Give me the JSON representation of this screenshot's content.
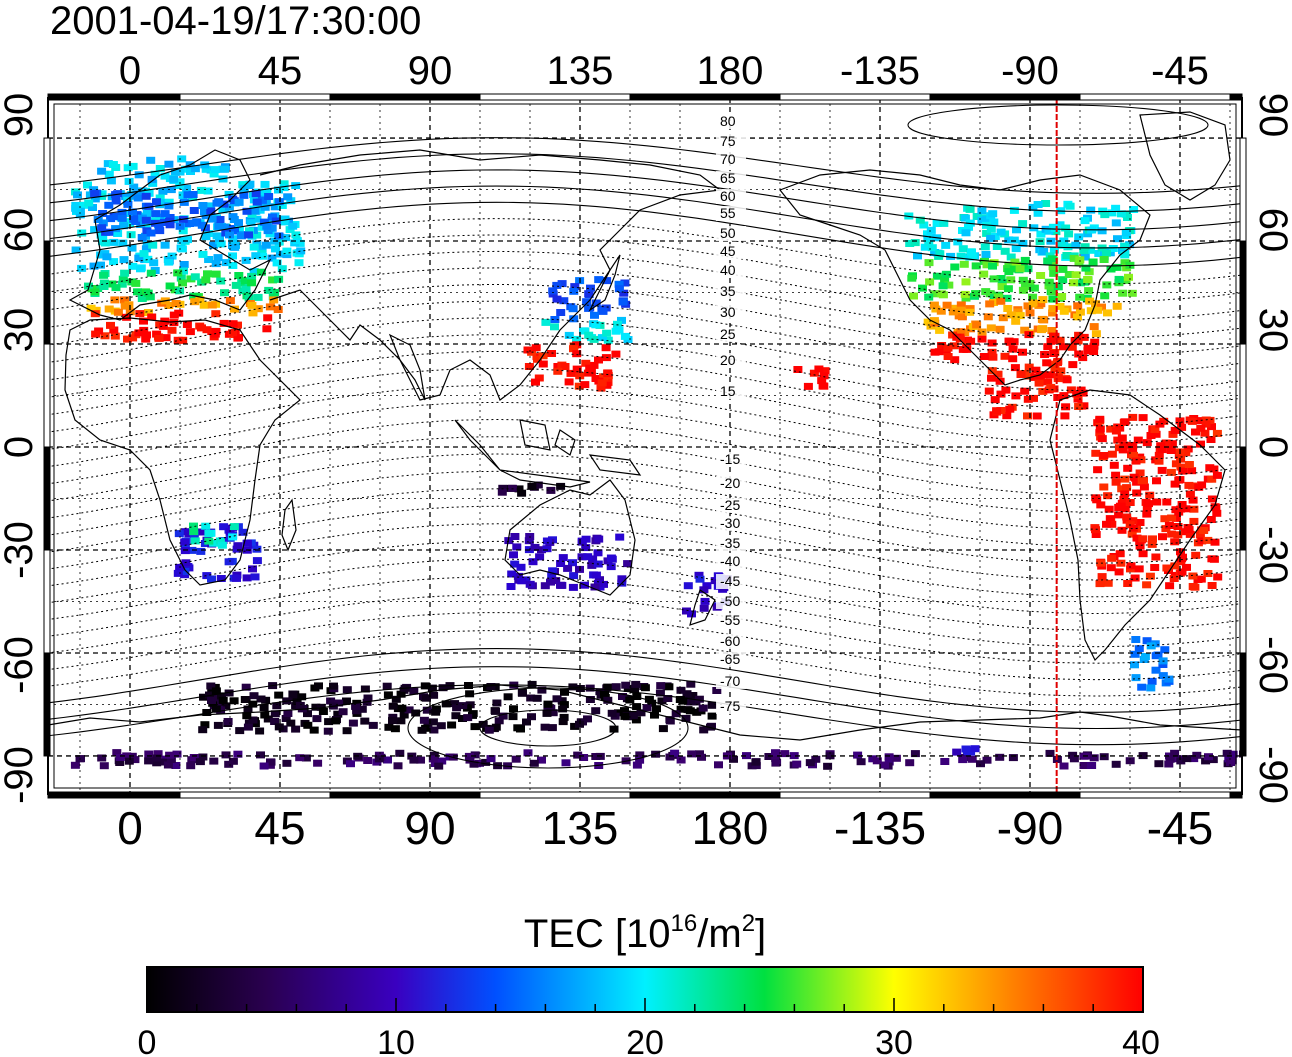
{
  "timestamp": "2001-04-19/17:30:00",
  "top_lon_labels": [
    "0",
    "45",
    "90",
    "135",
    "180",
    "-135",
    "-90",
    "-45"
  ],
  "bottom_lon_labels": [
    "0",
    "45",
    "90",
    "135",
    "180",
    "-135",
    "-90",
    "-45"
  ],
  "lat_labels": [
    "90",
    "60",
    "30",
    "0",
    "-30",
    "-60",
    "-90"
  ],
  "contour_labels": [
    "80",
    "75",
    "70",
    "65",
    "60",
    "55",
    "50",
    "45",
    "40",
    "35",
    "30",
    "25",
    "20",
    "15",
    "-15",
    "-20",
    "-25",
    "-30",
    "-35",
    "-40",
    "-45",
    "-50",
    "-55",
    "-60",
    "-65",
    "-70",
    "-75"
  ],
  "colorbar": {
    "title_main": "TEC  [10",
    "title_sup1": "16",
    "title_mid": "/m",
    "title_sup2": "2",
    "title_end": "]",
    "ticks": [
      "0",
      "10",
      "20",
      "30",
      "40"
    ],
    "min": 0,
    "max": 40
  },
  "marker_line": {
    "longitude": -82,
    "color": "#e00000"
  },
  "colormap": [
    "#000000",
    "#3d0070",
    "#2a00d0",
    "#0060ff",
    "#00f0ff",
    "#00e040",
    "#ffff00",
    "#ff8000",
    "#ff0000"
  ],
  "map_data": {
    "type": "heatmap",
    "title": "2001-04-19/17:30:00",
    "lon_range": [
      -22,
      335
    ],
    "lat_range": [
      -95,
      95
    ],
    "zlabel": "TEC [10^16/m^2]",
    "zlim": [
      0,
      40
    ],
    "regions": [
      {
        "lon": [
          -18,
          50
        ],
        "lat": [
          52,
          78
        ],
        "tec": 19
      },
      {
        "lon": [
          -12,
          45
        ],
        "lat": [
          62,
          75
        ],
        "tec": 15
      },
      {
        "lon": [
          -10,
          30
        ],
        "lat": [
          78,
          85
        ],
        "tec": 19
      },
      {
        "lon": [
          -14,
          45
        ],
        "lat": [
          44,
          52
        ],
        "tec": 24
      },
      {
        "lon": [
          -14,
          45
        ],
        "lat": [
          40,
          44
        ],
        "tec": 34
      },
      {
        "lon": [
          -12,
          40
        ],
        "lat": [
          32,
          40
        ],
        "tec": 40
      },
      {
        "lon": [
          12,
          37
        ],
        "lat": [
          -38,
          -22
        ],
        "tec": 11
      },
      {
        "lon": [
          16,
          32
        ],
        "lat": [
          -28,
          -22
        ],
        "tec": 22
      },
      {
        "lon": [
          125,
          148
        ],
        "lat": [
          38,
          50
        ],
        "tec": 14
      },
      {
        "lon": [
          122,
          150
        ],
        "lat": [
          32,
          38
        ],
        "tec": 20
      },
      {
        "lon": [
          118,
          145
        ],
        "lat": [
          18,
          31
        ],
        "tec": 40
      },
      {
        "lon": [
          108,
          130
        ],
        "lat": [
          -14,
          -10
        ],
        "tec": 2
      },
      {
        "lon": [
          112,
          148
        ],
        "lat": [
          -40,
          -25
        ],
        "tec": 9
      },
      {
        "lon": [
          165,
          178
        ],
        "lat": [
          -48,
          -36
        ],
        "tec": 10
      },
      {
        "lon": [
          198,
          210
        ],
        "lat": [
          18,
          24
        ],
        "tec": 40
      },
      {
        "lon": [
          232,
          300
        ],
        "lat": [
          56,
          72
        ],
        "tec": 20
      },
      {
        "lon": [
          232,
          300
        ],
        "lat": [
          44,
          56
        ],
        "tec": 26
      },
      {
        "lon": [
          238,
          295
        ],
        "lat": [
          34,
          44
        ],
        "tec": 34
      },
      {
        "lon": [
          240,
          290
        ],
        "lat": [
          26,
          34
        ],
        "tec": 40
      },
      {
        "lon": [
          255,
          285
        ],
        "lat": [
          10,
          26
        ],
        "tec": 40
      },
      {
        "lon": [
          288,
          325
        ],
        "lat": [
          -40,
          10
        ],
        "tec": 40
      },
      {
        "lon": [
          300,
          312
        ],
        "lat": [
          -70,
          -55
        ],
        "tec": 16
      },
      {
        "lon": [
          20,
          175
        ],
        "lat": [
          -82,
          -68
        ],
        "tec": 1
      },
      {
        "lon": [
          -18,
          335
        ],
        "lat": [
          -92,
          -88
        ],
        "tec": 4
      },
      {
        "lon": [
          245,
          260
        ],
        "lat": [
          -88,
          -86
        ],
        "tec": 10
      }
    ]
  }
}
